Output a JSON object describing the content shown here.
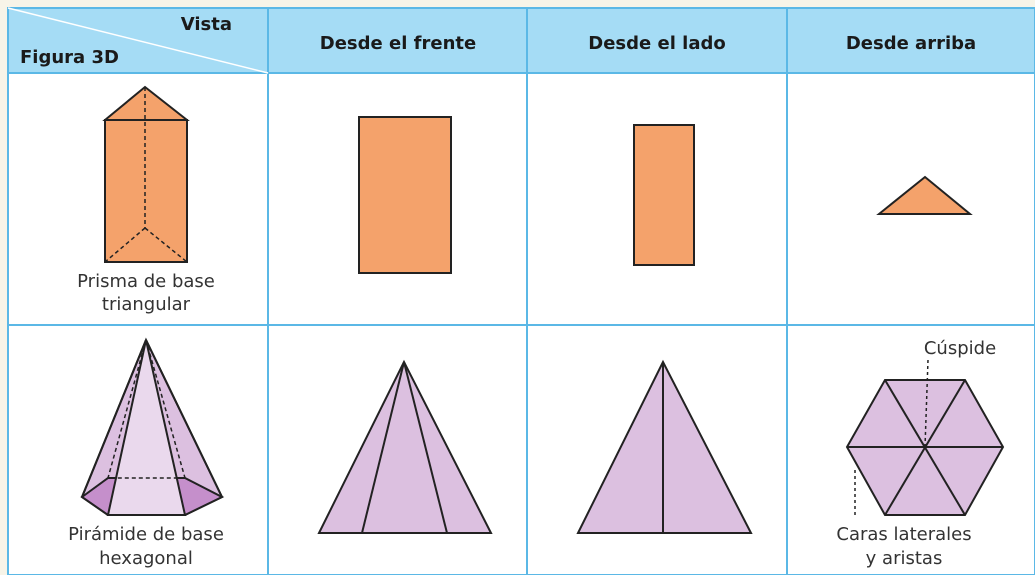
{
  "header": {
    "corner_top": "Vista",
    "corner_bottom": "Figura 3D",
    "columns": [
      "Desde el frente",
      "Desde el lado",
      "Desde arriba"
    ]
  },
  "rows": [
    {
      "label": [
        "Prisma de base",
        "triangular"
      ]
    },
    {
      "label": [
        "Pirámide de base",
        "hexagonal"
      ],
      "annotations": {
        "apex": "Cúspide",
        "faces": [
          "Caras laterales",
          "y aristas"
        ]
      }
    }
  ]
}
